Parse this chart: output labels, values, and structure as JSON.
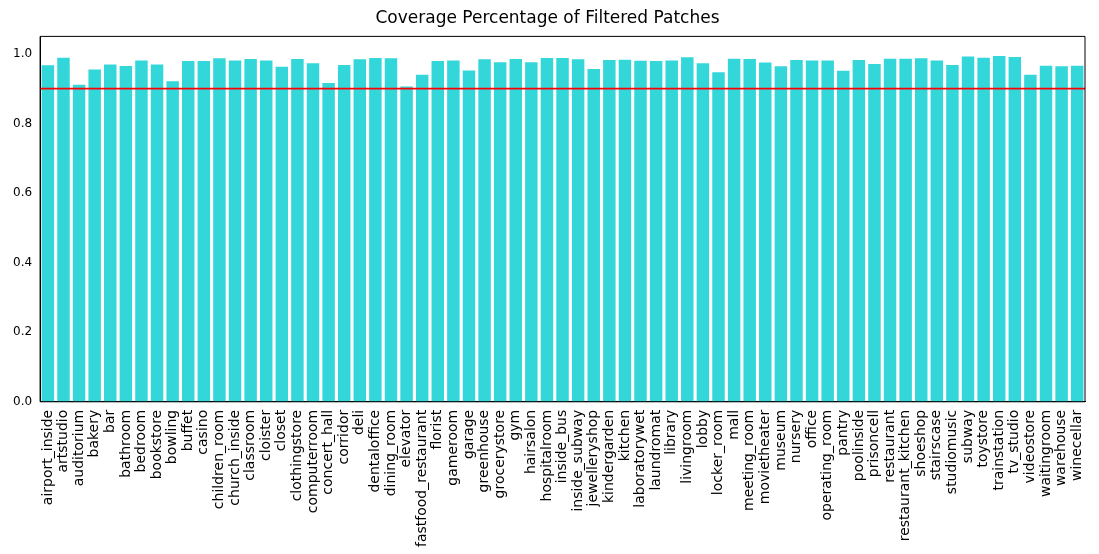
{
  "chart_data": {
    "type": "bar",
    "title": "Coverage Percentage of Filtered Patches",
    "categories": [
      "airport_inside",
      "artstudio",
      "auditorium",
      "bakery",
      "bar",
      "bathroom",
      "bedroom",
      "bookstore",
      "bowling",
      "buffet",
      "casino",
      "children_room",
      "church_inside",
      "classroom",
      "cloister",
      "closet",
      "clothingstore",
      "computerroom",
      "concert_hall",
      "corridor",
      "deli",
      "dentaloffice",
      "dining_room",
      "elevator",
      "fastfood_restaurant",
      "florist",
      "gameroom",
      "garage",
      "greenhouse",
      "grocerystore",
      "gym",
      "hairsalon",
      "hospitalroom",
      "inside_bus",
      "inside_subway",
      "jewelleryshop",
      "kindergarden",
      "kitchen",
      "laboratorywet",
      "laundromat",
      "library",
      "livingroom",
      "lobby",
      "locker_room",
      "mall",
      "meeting_room",
      "movietheater",
      "museum",
      "nursery",
      "office",
      "operating_room",
      "pantry",
      "poolinside",
      "prisoncell",
      "restaurant",
      "restaurant_kitchen",
      "shoeshop",
      "stairscase",
      "studiomusic",
      "subway",
      "toystore",
      "trainstation",
      "tv_studio",
      "videostore",
      "waitingroom",
      "warehouse",
      "winecellar"
    ],
    "values": [
      0.967,
      0.989,
      0.911,
      0.955,
      0.969,
      0.965,
      0.981,
      0.969,
      0.921,
      0.979,
      0.979,
      0.987,
      0.981,
      0.985,
      0.981,
      0.963,
      0.985,
      0.973,
      0.916,
      0.968,
      0.984,
      0.988,
      0.987,
      0.906,
      0.94,
      0.979,
      0.981,
      0.952,
      0.984,
      0.976,
      0.985,
      0.976,
      0.988,
      0.988,
      0.984,
      0.956,
      0.982,
      0.983,
      0.98,
      0.979,
      0.981,
      0.99,
      0.973,
      0.947,
      0.986,
      0.985,
      0.975,
      0.964,
      0.982,
      0.981,
      0.981,
      0.951,
      0.982,
      0.971,
      0.986,
      0.986,
      0.987,
      0.981,
      0.968,
      0.992,
      0.989,
      0.994,
      0.991,
      0.94,
      0.966,
      0.964,
      0.966
    ],
    "color": "#33d6d9",
    "ylim": [
      0,
      1.05
    ],
    "yticks": [
      {
        "value": 0,
        "label": "0.0"
      },
      {
        "value": 0.2,
        "label": "0.2"
      },
      {
        "value": 0.4,
        "label": "0.4"
      },
      {
        "value": 0.6,
        "label": "0.6"
      },
      {
        "value": 0.8,
        "label": "0.8"
      },
      {
        "value": 1,
        "label": "1.0"
      }
    ],
    "ref_lines": [
      {
        "axis": "y",
        "value": 0.9,
        "color": "#ff0000"
      }
    ],
    "grid": false,
    "legend": false
  }
}
